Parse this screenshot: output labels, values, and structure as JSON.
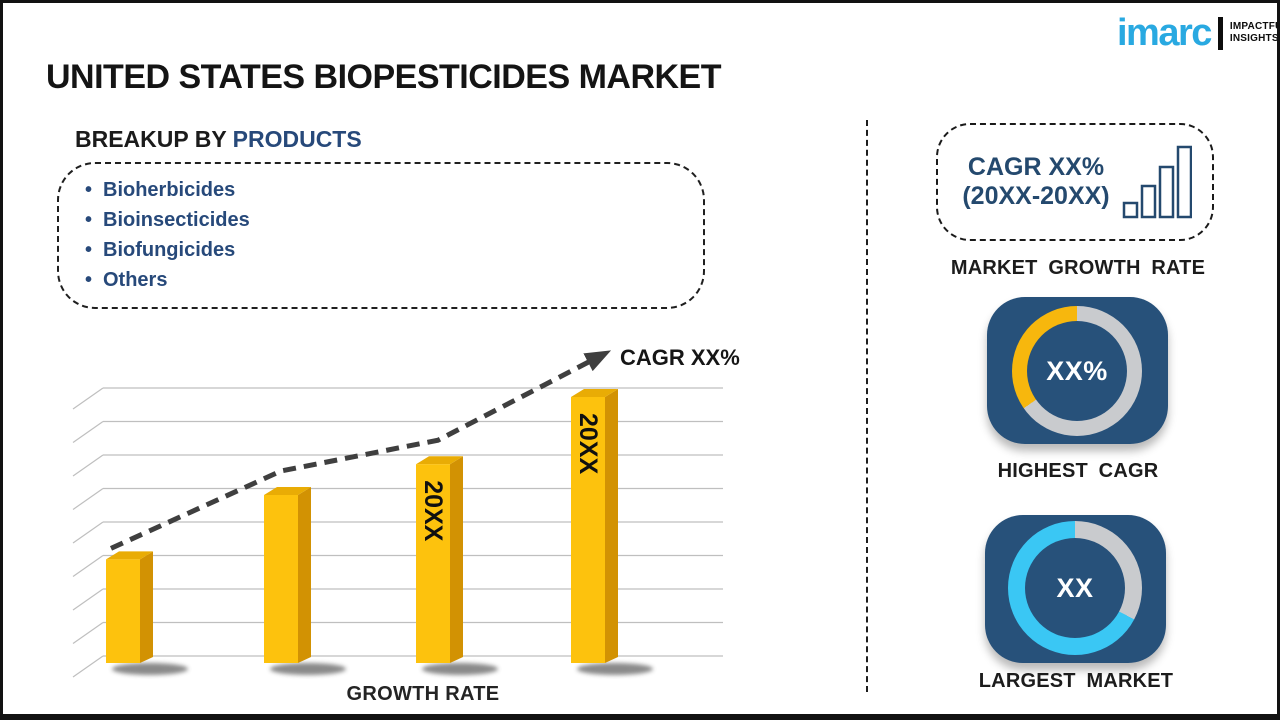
{
  "colors": {
    "navy": "#27497A",
    "tile_navy": "#27517A",
    "ring_gray": "#C9CBCE",
    "ring_yellow": "#F7B70D",
    "ring_cyan": "#3AC7F4",
    "bar_front": "#FDC20D",
    "bar_side": "#D29203",
    "bar_top": "#E9AC05",
    "trend_gray": "#3F3F3F",
    "grid_gray": "#BFBFBF",
    "logo_cyan": "#29A9E1"
  },
  "logo": {
    "brand": "imarc",
    "tagline_top": "IMPACTFUL",
    "tagline_bottom": "INSIGHTS"
  },
  "title": "UNITED STATES BIOPESTICIDES MARKET",
  "breakup": {
    "prefix": "BREAKUP BY ",
    "highlight": "PRODUCTS",
    "items": [
      "Bioherbicides",
      "Bioinsecticides",
      "Biofungicides",
      "Others"
    ]
  },
  "chart_data": {
    "type": "bar",
    "categories": [
      "",
      "",
      "20XX",
      "20XX"
    ],
    "values": [
      37,
      60,
      71,
      95
    ],
    "ylim": [
      0,
      100
    ],
    "xlabel": "GROWTH RATE",
    "ylabel": "",
    "grid": "horizontal",
    "legend": "none",
    "style": "3d-yellow-bars-with-dashed-trend-arrow",
    "trend_label": "CAGR XX%",
    "trend_style": "dashed-arrow"
  },
  "right_panel": {
    "cagr_box": {
      "line1": "CAGR XX%",
      "line2": "(20XX-20XX)",
      "icon": "ascending-bars-icon"
    },
    "market_growth_rate_label": "MARKET GROWTH RATE",
    "highest_cagr": {
      "value": "XX%",
      "label": "HIGHEST CAGR",
      "ring_segments": [
        {
          "color": "#C9CBCE",
          "from": 0,
          "to": 235
        },
        {
          "color": "#F7B70D",
          "from": 235,
          "to": 360
        }
      ]
    },
    "largest_market": {
      "value": "XX",
      "label": "LARGEST MARKET",
      "ring_segments": [
        {
          "color": "#C9CBCE",
          "from": 0,
          "to": 118
        },
        {
          "color": "#3AC7F4",
          "from": 118,
          "to": 360
        }
      ]
    }
  }
}
